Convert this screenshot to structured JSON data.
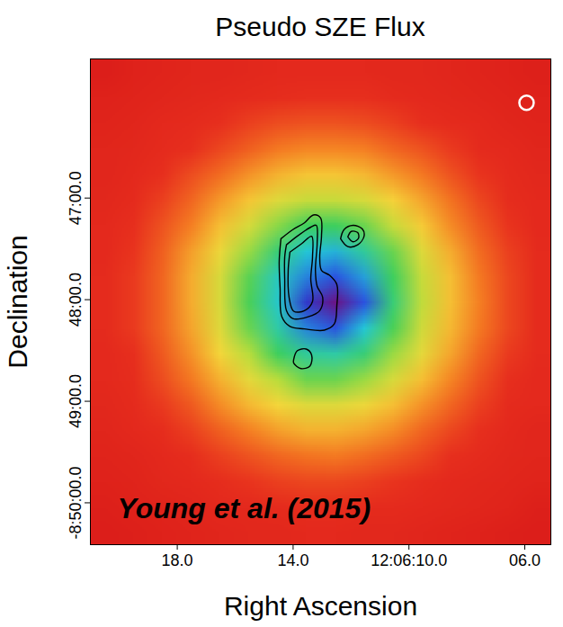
{
  "chart_data": {
    "type": "heatmap",
    "title": "Pseudo SZE Flux",
    "x_label": "Right Ascension",
    "y_label": "Declination",
    "xlim": [
      21.0,
      5.1
    ],
    "ylim": [
      -8.8402,
      -8.7605
    ],
    "xticks": [
      {
        "value": 18,
        "label": "18.0"
      },
      {
        "value": 14,
        "label": "14.0"
      },
      {
        "value": 10,
        "label": "12:06:10.0"
      },
      {
        "value": 6,
        "label": "06.0"
      }
    ],
    "yticks": [
      {
        "value": -8.83333,
        "label": "-8:50:00.0"
      },
      {
        "value": -8.81667,
        "label": "49:00.0"
      },
      {
        "value": -8.8,
        "label": "48:00.0"
      },
      {
        "value": -8.78333,
        "label": "47:00.0"
      }
    ],
    "values": [
      [
        0.6,
        0.8,
        0.9,
        1.0,
        1.0,
        1.1,
        1.2,
        1.2,
        1.2,
        1.2,
        1.1,
        1.1,
        1.0,
        0.9,
        0.8,
        0.7
      ],
      [
        0.8,
        0.9,
        1.0,
        1.1,
        1.2,
        1.3,
        1.4,
        1.5,
        1.5,
        1.5,
        1.3,
        1.2,
        1.1,
        1.0,
        0.9,
        0.8
      ],
      [
        0.9,
        1.0,
        1.2,
        1.3,
        1.5,
        1.8,
        2.0,
        2.1,
        2.1,
        2.0,
        1.8,
        1.5,
        1.3,
        1.2,
        1.0,
        0.9
      ],
      [
        1.0,
        1.1,
        1.3,
        1.5,
        1.9,
        2.3,
        2.7,
        2.9,
        2.9,
        2.8,
        2.4,
        2.1,
        1.7,
        1.3,
        1.2,
        1.0
      ],
      [
        1.0,
        1.2,
        1.5,
        2.0,
        2.5,
        3.1,
        3.6,
        3.9,
        3.9,
        3.7,
        3.2,
        2.7,
        2.1,
        1.6,
        1.3,
        1.1
      ],
      [
        1.1,
        1.3,
        1.8,
        2.4,
        3.2,
        3.9,
        4.5,
        4.8,
        4.8,
        4.6,
        4.1,
        3.4,
        2.6,
        1.9,
        1.4,
        1.2
      ],
      [
        1.2,
        1.5,
        2.1,
        2.8,
        3.8,
        4.6,
        5.3,
        5.8,
        5.8,
        5.5,
        4.8,
        4.0,
        3.0,
        2.2,
        1.6,
        1.2
      ],
      [
        1.2,
        1.6,
        2.3,
        3.3,
        4.3,
        5.2,
        6.0,
        6.8,
        7.0,
        6.3,
        5.5,
        4.5,
        3.5,
        2.5,
        1.8,
        1.3
      ],
      [
        1.3,
        1.7,
        2.4,
        3.5,
        4.6,
        5.6,
        6.6,
        7.5,
        8.0,
        7.2,
        5.8,
        4.8,
        3.8,
        2.7,
        1.9,
        1.3
      ],
      [
        1.3,
        1.7,
        2.4,
        3.5,
        4.6,
        5.7,
        6.7,
        8.5,
        10,
        8.0,
        6.0,
        4.9,
        3.8,
        2.8,
        1.9,
        1.3
      ],
      [
        1.3,
        1.7,
        2.4,
        3.4,
        4.5,
        5.5,
        6.4,
        7.5,
        8.0,
        6.8,
        5.7,
        4.7,
        3.7,
        2.7,
        1.9,
        1.3
      ],
      [
        1.2,
        1.5,
        2.2,
        3.1,
        4.2,
        5.0,
        5.8,
        6.3,
        6.4,
        6.0,
        5.2,
        4.4,
        3.4,
        2.4,
        1.7,
        1.3
      ],
      [
        1.2,
        1.4,
        2.0,
        2.7,
        3.6,
        4.4,
        5.0,
        5.5,
        5.5,
        5.2,
        4.6,
        3.8,
        2.9,
        2.1,
        1.5,
        1.2
      ],
      [
        1.1,
        1.3,
        1.7,
        2.2,
        3.0,
        3.7,
        4.2,
        4.5,
        4.5,
        4.3,
        3.8,
        3.1,
        2.4,
        1.8,
        1.3,
        1.2
      ],
      [
        1.0,
        1.2,
        1.4,
        1.8,
        2.3,
        2.8,
        3.3,
        3.6,
        3.6,
        3.4,
        3.0,
        2.4,
        1.9,
        1.5,
        1.2,
        1.0
      ],
      [
        0.9,
        1.0,
        1.2,
        1.4,
        1.8,
        2.1,
        2.4,
        2.6,
        2.7,
        2.5,
        2.2,
        1.9,
        1.5,
        1.3,
        1.1,
        1.0
      ],
      [
        0.8,
        0.9,
        1.1,
        1.2,
        1.4,
        1.6,
        1.8,
        1.9,
        1.9,
        1.8,
        1.6,
        1.4,
        1.2,
        1.1,
        1.0,
        0.9
      ],
      [
        0.7,
        0.8,
        0.9,
        1.0,
        1.2,
        1.2,
        1.3,
        1.4,
        1.4,
        1.3,
        1.3,
        1.2,
        1.1,
        1.0,
        0.9,
        0.7
      ],
      [
        0.6,
        0.7,
        0.8,
        0.9,
        1.0,
        1.1,
        1.1,
        1.2,
        1.2,
        1.1,
        1.1,
        1.0,
        0.9,
        0.8,
        0.7,
        0.6
      ]
    ],
    "contours": [
      [
        [
          14.42,
          -8.79
        ],
        [
          14.01,
          -8.7885
        ],
        [
          13.61,
          -8.7874
        ],
        [
          13.3,
          -8.7861
        ],
        [
          13.05,
          -8.7866
        ],
        [
          13.02,
          -8.7896
        ],
        [
          13.08,
          -8.793
        ],
        [
          13.02,
          -8.7952
        ],
        [
          12.74,
          -8.796
        ],
        [
          12.49,
          -8.7975
        ],
        [
          12.49,
          -8.801
        ],
        [
          12.58,
          -8.804
        ],
        [
          12.92,
          -8.805
        ],
        [
          13.61,
          -8.8048
        ],
        [
          14.11,
          -8.8044
        ],
        [
          14.39,
          -8.8028
        ],
        [
          14.45,
          -8.7981
        ],
        [
          14.48,
          -8.7937
        ],
        [
          14.42,
          -8.79
        ]
      ],
      [
        [
          14.23,
          -8.791
        ],
        [
          13.86,
          -8.7896
        ],
        [
          13.39,
          -8.7881
        ],
        [
          13.2,
          -8.7878
        ],
        [
          13.17,
          -8.7908
        ],
        [
          13.23,
          -8.7952
        ],
        [
          13.17,
          -8.7978
        ],
        [
          12.98,
          -8.7996
        ],
        [
          13.08,
          -8.8018
        ],
        [
          13.48,
          -8.8028
        ],
        [
          14.01,
          -8.8031
        ],
        [
          14.23,
          -8.8018
        ],
        [
          14.29,
          -8.7966
        ],
        [
          14.29,
          -8.793
        ],
        [
          14.23,
          -8.791
        ]
      ],
      [
        [
          14.11,
          -8.7922
        ],
        [
          13.7,
          -8.7908
        ],
        [
          13.36,
          -8.7896
        ],
        [
          13.33,
          -8.793
        ],
        [
          13.39,
          -8.7966
        ],
        [
          13.33,
          -8.8003
        ],
        [
          13.61,
          -8.8018
        ],
        [
          13.98,
          -8.8019
        ],
        [
          14.14,
          -8.7996
        ],
        [
          14.17,
          -8.7952
        ],
        [
          14.11,
          -8.7922
        ]
      ],
      [
        [
          12.36,
          -8.79
        ],
        [
          12.24,
          -8.7885
        ],
        [
          11.93,
          -8.7878
        ],
        [
          11.61,
          -8.7884
        ],
        [
          11.55,
          -8.7896
        ],
        [
          11.77,
          -8.791
        ],
        [
          12.11,
          -8.7913
        ],
        [
          12.36,
          -8.79
        ]
      ],
      [
        [
          12.11,
          -8.7897
        ],
        [
          11.99,
          -8.7888
        ],
        [
          11.77,
          -8.789
        ],
        [
          11.74,
          -8.7899
        ],
        [
          11.93,
          -8.7905
        ],
        [
          12.11,
          -8.7897
        ]
      ],
      [
        [
          13.98,
          -8.8098
        ],
        [
          13.86,
          -8.8084
        ],
        [
          13.55,
          -8.8081
        ],
        [
          13.36,
          -8.8091
        ],
        [
          13.42,
          -8.8109
        ],
        [
          13.73,
          -8.8113
        ],
        [
          13.98,
          -8.8104
        ],
        [
          13.98,
          -8.8098
        ]
      ]
    ],
    "beam": {
      "x": 5.94,
      "y": -8.7677
    },
    "annotation": "Young et al. (2015)"
  }
}
